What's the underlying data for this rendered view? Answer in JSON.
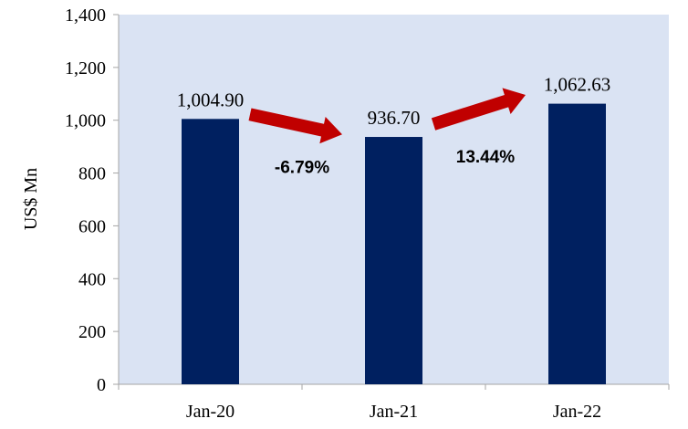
{
  "chart_data": {
    "type": "bar",
    "categories": [
      "Jan-20",
      "Jan-21",
      "Jan-22"
    ],
    "values": [
      1004.9,
      936.7,
      1062.63
    ],
    "data_labels": [
      "1,004.90",
      "936.70",
      "1,062.63"
    ],
    "ylabel": "US$ Mn",
    "ylim": [
      0,
      1400
    ],
    "yticks": [
      0,
      200,
      400,
      600,
      800,
      1000,
      1200,
      1400
    ],
    "ytick_labels": [
      "0",
      "200",
      "400",
      "600",
      "800",
      "1,000",
      "1,200",
      "1,400"
    ],
    "grid": false,
    "bar_color": "#002060",
    "plot_background": "#dae3f3",
    "annotations": [
      {
        "text": "-6.79%",
        "between": [
          "Jan-20",
          "Jan-21"
        ],
        "direction": "down",
        "arrow_color": "#c00000"
      },
      {
        "text": "13.44%",
        "between": [
          "Jan-21",
          "Jan-22"
        ],
        "direction": "up",
        "arrow_color": "#c00000"
      }
    ]
  }
}
